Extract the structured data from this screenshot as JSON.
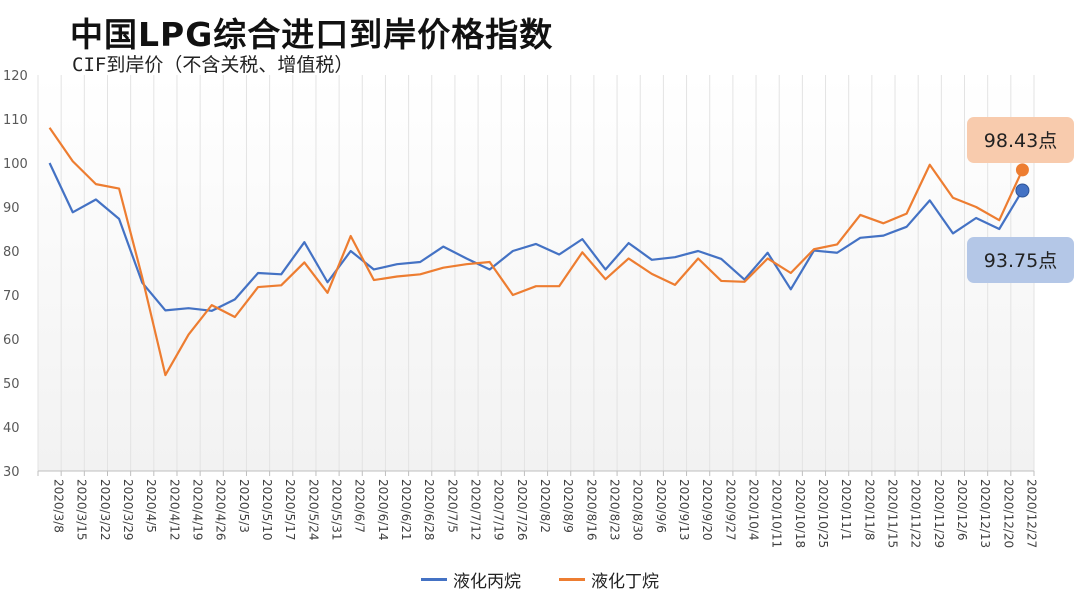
{
  "colors": {
    "propane": "#4472C4",
    "butane": "#ED7D31",
    "butane_callout_bg": "#F8CBAD",
    "propane_callout_bg": "#B4C7E7"
  },
  "chart_data": {
    "type": "line",
    "title": "中国LPG综合进口到岸价格指数",
    "subtitle": "CIF到岸价（不含关税、增值税）",
    "xlabel": "",
    "ylabel": "",
    "ylim": [
      30,
      120
    ],
    "yticks": [
      30,
      40,
      50,
      60,
      70,
      80,
      90,
      100,
      110,
      120
    ],
    "grid": "vertical",
    "legend_position": "bottom",
    "categories": [
      "2020/3/8",
      "2020/3/15",
      "2020/3/22",
      "2020/3/29",
      "2020/4/5",
      "2020/4/12",
      "2020/4/19",
      "2020/4/26",
      "2020/5/3",
      "2020/5/10",
      "2020/5/17",
      "2020/5/24",
      "2020/5/31",
      "2020/6/7",
      "2020/6/14",
      "2020/6/21",
      "2020/6/28",
      "2020/7/5",
      "2020/7/12",
      "2020/7/19",
      "2020/7/26",
      "2020/8/2",
      "2020/8/9",
      "2020/8/16",
      "2020/8/23",
      "2020/8/30",
      "2020/9/6",
      "2020/9/13",
      "2020/9/20",
      "2020/9/27",
      "2020/10/4",
      "2020/10/11",
      "2020/10/18",
      "2020/10/25",
      "2020/11/1",
      "2020/11/8",
      "2020/11/15",
      "2020/11/22",
      "2020/11/29",
      "2020/12/6",
      "2020/12/13",
      "2020/12/20",
      "2020/12/27"
    ],
    "series": [
      {
        "name": "液化丙烷",
        "color_key": "propane",
        "values": [
          100,
          88.8,
          91.7,
          87.3,
          72.8,
          66.5,
          67.0,
          66.4,
          69.0,
          75.0,
          74.7,
          82.0,
          72.9,
          80.0,
          75.8,
          77.0,
          77.5,
          81.0,
          78.3,
          75.8,
          80.0,
          81.6,
          79.2,
          82.7,
          75.8,
          81.8,
          78.0,
          78.6,
          80.0,
          78.2,
          73.5,
          79.6,
          71.3,
          80.1,
          79.6,
          83.0,
          83.5,
          85.5,
          91.5,
          84.0,
          87.5,
          85.0,
          93.75
        ],
        "end_label": "93.75点"
      },
      {
        "name": "液化丁烷",
        "color_key": "butane",
        "values": [
          108,
          100.4,
          95.2,
          94.2,
          74.0,
          51.8,
          61.0,
          67.7,
          65.0,
          71.8,
          72.2,
          77.4,
          70.5,
          83.4,
          73.4,
          74.2,
          74.7,
          76.2,
          77.0,
          77.5,
          70.0,
          72.0,
          72.0,
          79.7,
          73.6,
          78.3,
          74.8,
          72.3,
          78.3,
          73.2,
          73.0,
          78.3,
          75.0,
          80.4,
          81.5,
          88.2,
          86.3,
          88.5,
          99.6,
          92.1,
          90.0,
          87.0,
          98.43
        ],
        "end_label": "98.43点"
      }
    ]
  }
}
